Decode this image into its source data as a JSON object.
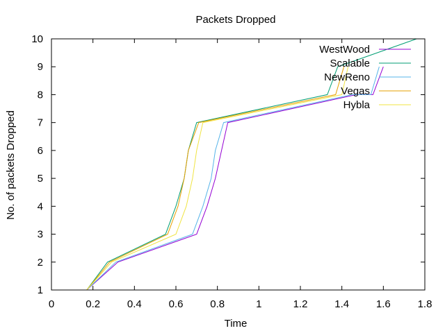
{
  "chart_data": {
    "type": "line",
    "title": "Packets Dropped",
    "xlabel": "Time",
    "ylabel": "No. of packets Dropped",
    "xlim": [
      0,
      1.8
    ],
    "ylim": [
      1,
      10
    ],
    "xticks": [
      0,
      0.2,
      0.4,
      0.6,
      0.8,
      1,
      1.2,
      1.4,
      1.6,
      1.8
    ],
    "xtick_labels": [
      "0",
      "0.2",
      "0.4",
      "0.6",
      "0.8",
      "1",
      "1.2",
      "1.4",
      "1.6",
      "1.8"
    ],
    "yticks": [
      1,
      2,
      3,
      4,
      5,
      6,
      7,
      8,
      9,
      10
    ],
    "ytick_labels": [
      "1",
      "2",
      "3",
      "4",
      "5",
      "6",
      "7",
      "8",
      "9",
      "10"
    ],
    "grid": false,
    "legend_position": "top-right",
    "series": [
      {
        "name": "WestWood",
        "color": "#9400d3",
        "points": [
          [
            0.17,
            1
          ],
          [
            0.32,
            2
          ],
          [
            0.7,
            3
          ],
          [
            0.75,
            4
          ],
          [
            0.79,
            5
          ],
          [
            0.82,
            6
          ],
          [
            0.85,
            7
          ],
          [
            1.47,
            8
          ],
          [
            1.55,
            8
          ],
          [
            1.6,
            9
          ]
        ]
      },
      {
        "name": "Scalable",
        "color": "#009e73",
        "points": [
          [
            0.17,
            1
          ],
          [
            0.27,
            2
          ],
          [
            0.55,
            3
          ],
          [
            0.6,
            4
          ],
          [
            0.64,
            5
          ],
          [
            0.66,
            6
          ],
          [
            0.7,
            7
          ],
          [
            1.33,
            8
          ],
          [
            1.38,
            9
          ],
          [
            1.76,
            10
          ]
        ]
      },
      {
        "name": "NewReno",
        "color": "#56b4e9",
        "points": [
          [
            0.17,
            1
          ],
          [
            0.31,
            2
          ],
          [
            0.68,
            3
          ],
          [
            0.73,
            4
          ],
          [
            0.77,
            5
          ],
          [
            0.79,
            6
          ],
          [
            0.83,
            7
          ],
          [
            1.45,
            8
          ],
          [
            1.54,
            8
          ],
          [
            1.58,
            9
          ]
        ]
      },
      {
        "name": "Vegas",
        "color": "#e69f00",
        "points": [
          [
            0.17,
            1
          ],
          [
            0.28,
            2
          ],
          [
            0.56,
            3
          ],
          [
            0.61,
            4
          ],
          [
            0.64,
            5
          ],
          [
            0.66,
            6
          ],
          [
            0.71,
            7
          ],
          [
            1.37,
            8
          ],
          [
            1.41,
            9
          ]
        ]
      },
      {
        "name": "Hybla",
        "color": "#f0e442",
        "points": [
          [
            0.17,
            1
          ],
          [
            0.29,
            2
          ],
          [
            0.6,
            3
          ],
          [
            0.65,
            4
          ],
          [
            0.68,
            5
          ],
          [
            0.7,
            6
          ],
          [
            0.73,
            7
          ],
          [
            1.4,
            8
          ],
          [
            1.43,
            9
          ]
        ]
      }
    ]
  }
}
